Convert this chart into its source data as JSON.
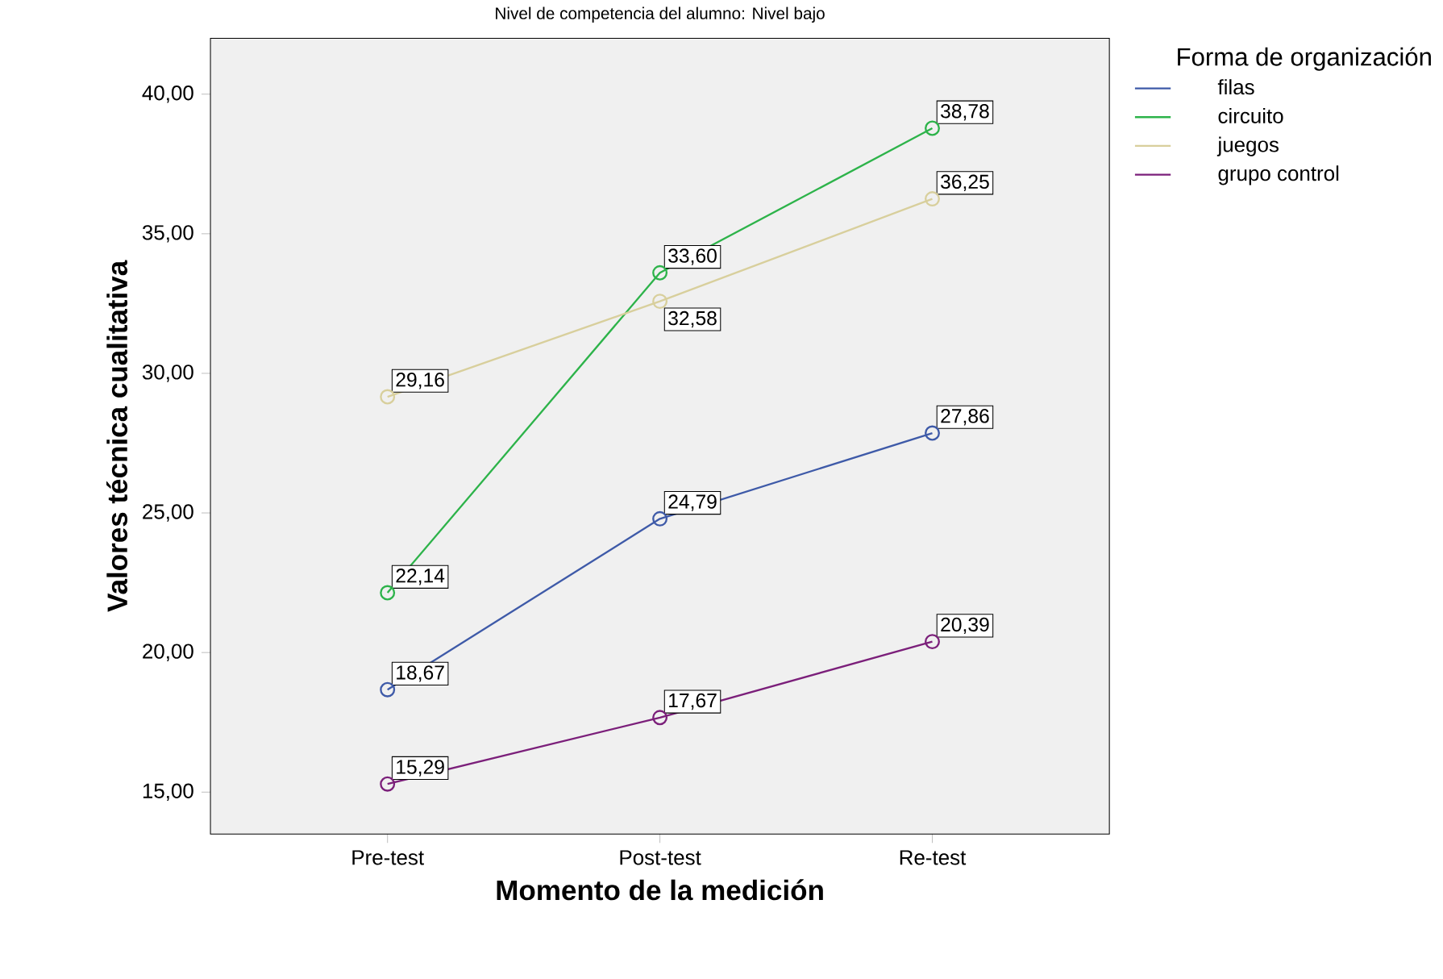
{
  "chart_data": {
    "type": "line",
    "title": "Nivel de competencia del alumno: Nivel bajo",
    "xlabel": "Momento de la medición",
    "ylabel": "Valores técnica cualitativa",
    "legend_title": "Forma de organización",
    "categories": [
      "Pre-test",
      "Post-test",
      "Re-test"
    ],
    "series": [
      {
        "name": "filas",
        "color": "#3e5aa8",
        "values": [
          18.67,
          24.79,
          27.86
        ],
        "value_labels": [
          "18,67",
          "24,79",
          "27,86"
        ]
      },
      {
        "name": "circuito",
        "color": "#2db34a",
        "values": [
          22.14,
          33.6,
          38.78
        ],
        "value_labels": [
          "22,14",
          "33,60",
          "38,78"
        ]
      },
      {
        "name": "juegos",
        "color": "#d8cf9c",
        "values": [
          29.16,
          32.58,
          36.25
        ],
        "value_labels": [
          "29,16",
          "32,58",
          "36,25"
        ]
      },
      {
        "name": "grupo control",
        "color": "#7b1f7a",
        "values": [
          15.29,
          17.67,
          20.39
        ],
        "value_labels": [
          "15,29",
          "17,67",
          "20,39"
        ]
      }
    ],
    "ylim": [
      13.5,
      42
    ],
    "yticks": [
      {
        "value": 15,
        "label": "15,00"
      },
      {
        "value": 20,
        "label": "20,00"
      },
      {
        "value": 25,
        "label": "25,00"
      },
      {
        "value": 30,
        "label": "30,00"
      },
      {
        "value": 35,
        "label": "35,00"
      },
      {
        "value": 40,
        "label": "40,00"
      }
    ],
    "grid": false,
    "legend": "top right",
    "marker": "circle",
    "line_style": "solid"
  }
}
